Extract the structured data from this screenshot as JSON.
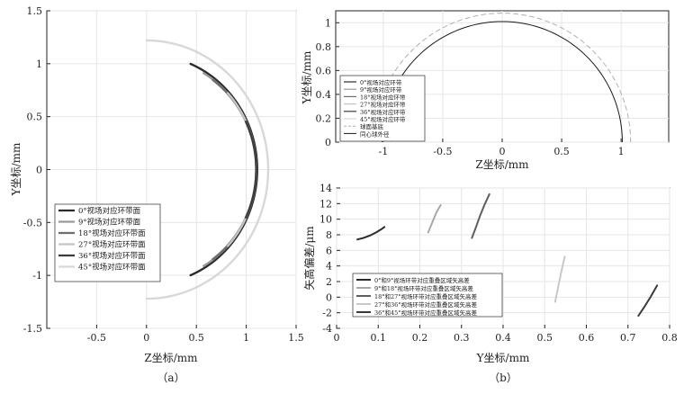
{
  "chart_data": [
    {
      "id": "a",
      "type": "line",
      "caption": "（a）",
      "xlabel": "Z坐标/mm",
      "ylabel": "Y坐标/mm",
      "xlim": [
        -1.0,
        1.5
      ],
      "ylim": [
        -1.5,
        1.5
      ],
      "xticks": [
        "-0.5",
        "0",
        "0.5",
        "1",
        "1.5"
      ],
      "xtick_values": [
        -0.5,
        0,
        0.5,
        1,
        1.5
      ],
      "yticks": [
        "-1.5",
        "-1",
        "-0.5",
        "0",
        "0.5",
        "1",
        "1.5"
      ],
      "ytick_values": [
        -1.5,
        -1,
        -0.5,
        0,
        0.5,
        1,
        1.5
      ],
      "legend_position": "bottom-left",
      "series": [
        {
          "name": "0°视场对应环带面",
          "color": "#2b2b2b",
          "width": 2.4,
          "arc": {
            "cx": 0.03,
            "cy": 0,
            "r": 1.08,
            "t0": -1.18,
            "t1": 1.18
          }
        },
        {
          "name": "9°视场对应环带面",
          "color": "#9a9a9a",
          "width": 2.4,
          "arc": {
            "cx": 0.05,
            "cy": 0,
            "r": 1.05,
            "t0": -1.05,
            "t1": 1.05
          }
        },
        {
          "name": "18°视场对应环带面",
          "color": "#6e6e6e",
          "width": 2.4,
          "arc": {
            "cx": 0.06,
            "cy": 0,
            "r": 1.04,
            "t0": -0.95,
            "t1": 0.95
          }
        },
        {
          "name": "27°视场对应环带面",
          "color": "#c4c4c4",
          "width": 2.4,
          "arc": {
            "cx": 0.04,
            "cy": 0,
            "r": 1.06,
            "t0": -0.75,
            "t1": 0.75
          }
        },
        {
          "name": "36°视场对应环带面",
          "color": "#3c3c3c",
          "width": 2.4,
          "arc": {
            "cx": 0.06,
            "cy": 0,
            "r": 1.04,
            "t0": -0.45,
            "t1": 0.45
          }
        },
        {
          "name": "45°视场对应环带面",
          "color": "#d8d8d8",
          "width": 2.4,
          "arc": {
            "cx": 0.0,
            "cy": 0,
            "r": 1.22,
            "t0": -1.57,
            "t1": 1.57
          }
        }
      ]
    },
    {
      "id": "b-top",
      "type": "line",
      "xlabel": "Z坐标/mm",
      "ylabel": "Y坐标/mm",
      "xlim": [
        -1.4,
        1.4
      ],
      "ylim": [
        0,
        1.1
      ],
      "xticks": [
        "-1",
        "-0.5",
        "0",
        "0.5",
        "1"
      ],
      "xtick_values": [
        -1,
        -0.5,
        0,
        0.5,
        1
      ],
      "yticks": [
        "0",
        "0.2",
        "0.4",
        "0.6",
        "0.8",
        "1"
      ],
      "ytick_values": [
        0,
        0.2,
        0.4,
        0.6,
        0.8,
        1
      ],
      "legend_position": "left",
      "series": [
        {
          "name": "0°视场对应环带",
          "color": "#2b2b2b",
          "width": 1.2
        },
        {
          "name": "9°视场对应环带",
          "color": "#9a9a9a",
          "width": 1.2
        },
        {
          "name": "18°视场对应环带",
          "color": "#6e6e6e",
          "width": 1.2
        },
        {
          "name": "27°视场对应环带",
          "color": "#c4c4c4",
          "width": 1.2
        },
        {
          "name": "36°视场对应环带",
          "color": "#3c3c3c",
          "width": 1.2
        },
        {
          "name": "45°视场对应环带",
          "color": "#d8d8d8",
          "width": 1.2
        },
        {
          "name": "球面基底",
          "color": "#b0b0b0",
          "width": 1.0,
          "dashed": true,
          "arc": {
            "cx": 0,
            "cy": 0,
            "r": 1.08,
            "t0": 0,
            "t1": 3.14159
          }
        },
        {
          "name": "同心球外径",
          "color": "#1a1a1a",
          "width": 1.0,
          "arc": {
            "cx": 0,
            "cy": 0,
            "r": 1.01,
            "t0": 0,
            "t1": 3.14159
          }
        }
      ]
    },
    {
      "id": "b-bottom",
      "type": "line",
      "caption": "（b）",
      "xlabel": "Y坐标/mm",
      "ylabel": "矢高偏差/μm",
      "xlim": [
        0,
        0.8
      ],
      "ylim": [
        -4,
        14
      ],
      "xticks": [
        "0",
        "0.1",
        "0.2",
        "0.3",
        "0.4",
        "0.5",
        "0.6",
        "0.7",
        "0.8"
      ],
      "xtick_values": [
        0,
        0.1,
        0.2,
        0.3,
        0.4,
        0.5,
        0.6,
        0.7,
        0.8
      ],
      "yticks": [
        "-4",
        "-2",
        "0",
        "2",
        "4",
        "6",
        "8",
        "10",
        "12",
        "14"
      ],
      "ytick_values": [
        -4,
        -2,
        0,
        2,
        4,
        6,
        8,
        10,
        12,
        14
      ],
      "legend_position": "bottom-left",
      "series": [
        {
          "name": "0°和9°视场环带对应重叠区域矢高差",
          "color": "#2b2b2b",
          "width": 2.0,
          "x": [
            0.05,
            0.065,
            0.08,
            0.095,
            0.11,
            0.115
          ],
          "y": [
            7.4,
            7.6,
            7.9,
            8.3,
            8.8,
            9.0
          ]
        },
        {
          "name": "9°和18°视场环带对应重叠区域矢高差",
          "color": "#a8a8a8",
          "width": 2.0,
          "x": [
            0.22,
            0.23,
            0.24,
            0.25
          ],
          "y": [
            8.3,
            9.6,
            10.9,
            11.8
          ]
        },
        {
          "name": "18°和27°视场环带对应重叠区域矢高差",
          "color": "#5e5e5e",
          "width": 2.0,
          "x": [
            0.325,
            0.335,
            0.345,
            0.355,
            0.367
          ],
          "y": [
            7.6,
            9.0,
            10.5,
            11.8,
            13.2
          ]
        },
        {
          "name": "27°和36°视场环带对应重叠区域矢高差",
          "color": "#c8c8c8",
          "width": 2.0,
          "x": [
            0.525,
            0.532,
            0.54,
            0.548
          ],
          "y": [
            -0.6,
            1.2,
            3.3,
            5.2
          ]
        },
        {
          "name": "36°和45°视场环带对应重叠区域矢高差",
          "color": "#3a3a3a",
          "width": 2.0,
          "x": [
            0.725,
            0.74,
            0.755,
            0.77
          ],
          "y": [
            -2.4,
            -1.2,
            0.1,
            1.5
          ]
        }
      ]
    }
  ]
}
